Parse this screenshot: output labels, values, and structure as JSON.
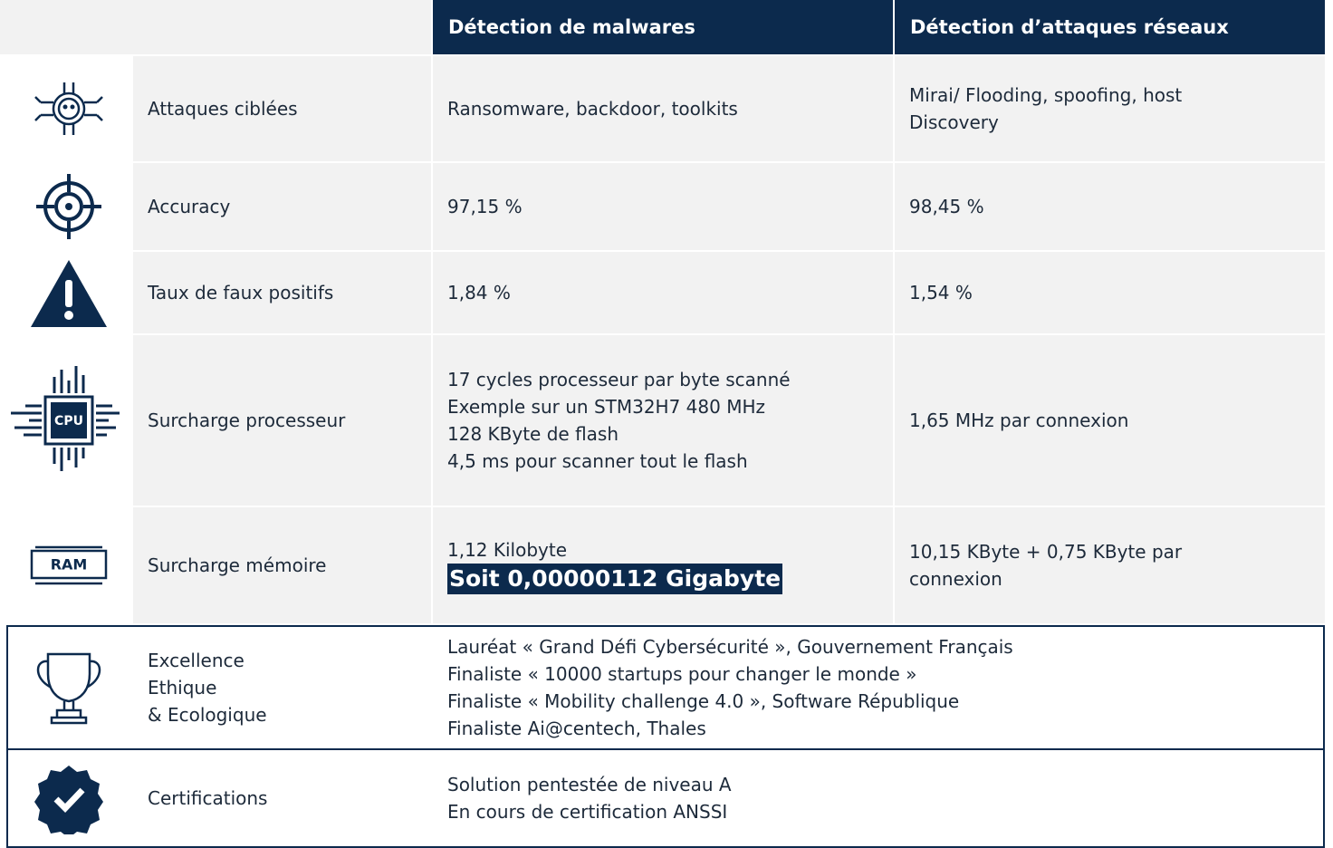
{
  "header": {
    "columns": [
      "Détection de malwares",
      "Détection d’attaques réseaux"
    ]
  },
  "icons": {
    "cpu": "CPU",
    "ram": "RAM"
  },
  "rows": [
    {
      "label": [
        "Attaques ciblées"
      ],
      "malware": [
        "Ransomware, backdoor, toolkits"
      ],
      "network": [
        "Mirai/ Flooding, spoofing, host",
        "Discovery"
      ]
    },
    {
      "label": [
        "Accuracy"
      ],
      "malware": [
        "97,15 %"
      ],
      "network": [
        "98,45 %"
      ]
    },
    {
      "label": [
        "Taux de faux positifs"
      ],
      "malware": [
        "1,84 %"
      ],
      "network": [
        "1,54 %"
      ]
    },
    {
      "label": [
        "Surcharge processeur"
      ],
      "malware": [
        "17 cycles processeur par byte scanné",
        "Exemple sur un STM32H7 480 MHz",
        "128 KByte de flash",
        "4,5 ms pour scanner tout le flash"
      ],
      "network": [
        "1,65 MHz par connexion"
      ]
    },
    {
      "label": [
        "Surcharge mémoire"
      ],
      "malware": [
        "1,12 Kilobyte"
      ],
      "highlight": "Soit 0,00000112 Gigabyte",
      "network": [
        "10,15 KByte + 0,75 KByte par",
        "connexion"
      ]
    },
    {
      "label": [
        "Excellence",
        "Ethique",
        "& Ecologique"
      ],
      "details": [
        "Lauréat  « Grand Défi Cybersécurité », Gouvernement Français",
        "Finaliste  « 10000 startups pour changer le monde »",
        "Finaliste  « Mobility challenge 4.0 », Software République",
        "Finaliste Ai@centech, Thales"
      ]
    },
    {
      "label": [
        "Certifications"
      ],
      "details": [
        "Solution pentestée de niveau A",
        "En cours de certification ANSSI"
      ]
    }
  ]
}
